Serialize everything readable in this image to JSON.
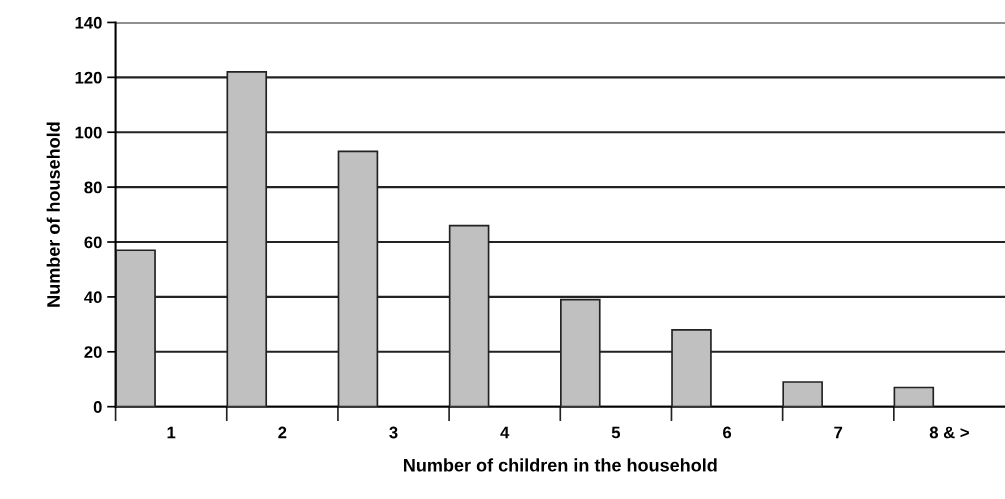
{
  "chart_data": {
    "type": "bar",
    "xlabel": "Number of children in the household",
    "ylabel": "Number of household",
    "categories": [
      "1",
      "2",
      "3",
      "4",
      "5",
      "6",
      "7",
      "8 & >"
    ],
    "values": [
      57,
      122,
      93,
      66,
      39,
      28,
      9,
      7
    ],
    "color": "#c0c0c0",
    "ylim": [
      0,
      140
    ],
    "yticks": [
      0,
      20,
      40,
      60,
      80,
      100,
      120,
      140
    ],
    "grid": "y",
    "legend": false
  }
}
